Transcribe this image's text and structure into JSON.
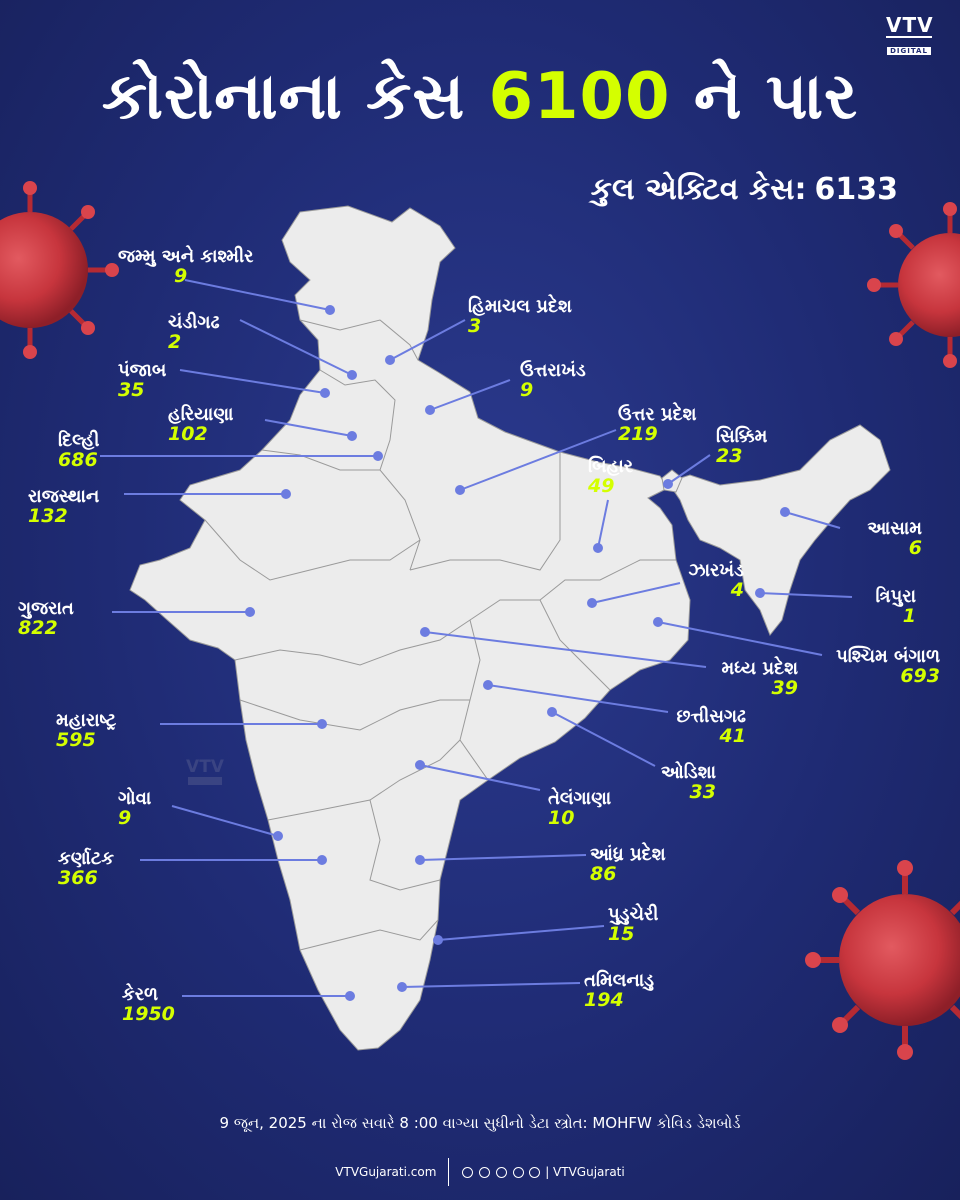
{
  "brand": {
    "logo_text": "VTV",
    "logo_sub": "DIGITAL"
  },
  "headline": {
    "part1": "કોરોનાના કેસ ",
    "highlight": "6100",
    "part2": " ને પાર"
  },
  "total": {
    "label": "કુલ એક્ટિવ કેસ:",
    "value": "6133"
  },
  "colors": {
    "background": "#1f2b74",
    "map_fill": "#ececec",
    "accent": "#d4ff00",
    "leader": "#6c7ce0",
    "virus": "#c7353d"
  },
  "states": [
    {
      "name": "જમ્મુ અને કાશ્મીર",
      "value": "9"
    },
    {
      "name": "હિમાચલ પ્રદેશ",
      "value": "3"
    },
    {
      "name": "ચંડીગઢ",
      "value": "2"
    },
    {
      "name": "પંજાબ",
      "value": "35"
    },
    {
      "name": "ઉત્તરાખંડ",
      "value": "9"
    },
    {
      "name": "હરિયાણા",
      "value": "102"
    },
    {
      "name": "દિલ્હી",
      "value": "686"
    },
    {
      "name": "ઉત્તર પ્રદેશ",
      "value": "219"
    },
    {
      "name": "સિક્કિમ",
      "value": "23"
    },
    {
      "name": "બિહાર",
      "value": "49"
    },
    {
      "name": "રાજસ્થાન",
      "value": "132"
    },
    {
      "name": "આસામ",
      "value": "6"
    },
    {
      "name": "ઝારખંડ",
      "value": "4"
    },
    {
      "name": "ત્રિપુરા",
      "value": "1"
    },
    {
      "name": "ગુજરાત",
      "value": "822"
    },
    {
      "name": "પશ્ચિમ બંગાળ",
      "value": "693"
    },
    {
      "name": "મધ્ય પ્રદેશ",
      "value": "39"
    },
    {
      "name": "મહારાષ્ટ્ર",
      "value": "595"
    },
    {
      "name": "છત્તીસગઢ",
      "value": "41"
    },
    {
      "name": "ઓડિશા",
      "value": "33"
    },
    {
      "name": "તેલંગાણા",
      "value": "10"
    },
    {
      "name": "ગોવા",
      "value": "9"
    },
    {
      "name": "કર્ણાટક",
      "value": "366"
    },
    {
      "name": "આંધ્ર પ્રદેશ",
      "value": "86"
    },
    {
      "name": "પુડુચેરી",
      "value": "15"
    },
    {
      "name": "તમિલનાડુ",
      "value": "194"
    },
    {
      "name": "કેરળ",
      "value": "1950"
    }
  ],
  "watermark": {
    "text": "VTV",
    "sub": "DIGITAL"
  },
  "footer": {
    "note": "9 જૂન, 2025 ના રોજ સવારે 8 :00 વાગ્યા સુધીનો ડેટા સ્ત્રોત: MOHFW કોવિડ ડેશબોર્ડ",
    "site": "VTVGujarati.com",
    "handle": "VTVGujarati",
    "social_icons": [
      "youtube-icon",
      "facebook-icon",
      "instagram-icon",
      "x-icon",
      "threads-icon"
    ]
  }
}
